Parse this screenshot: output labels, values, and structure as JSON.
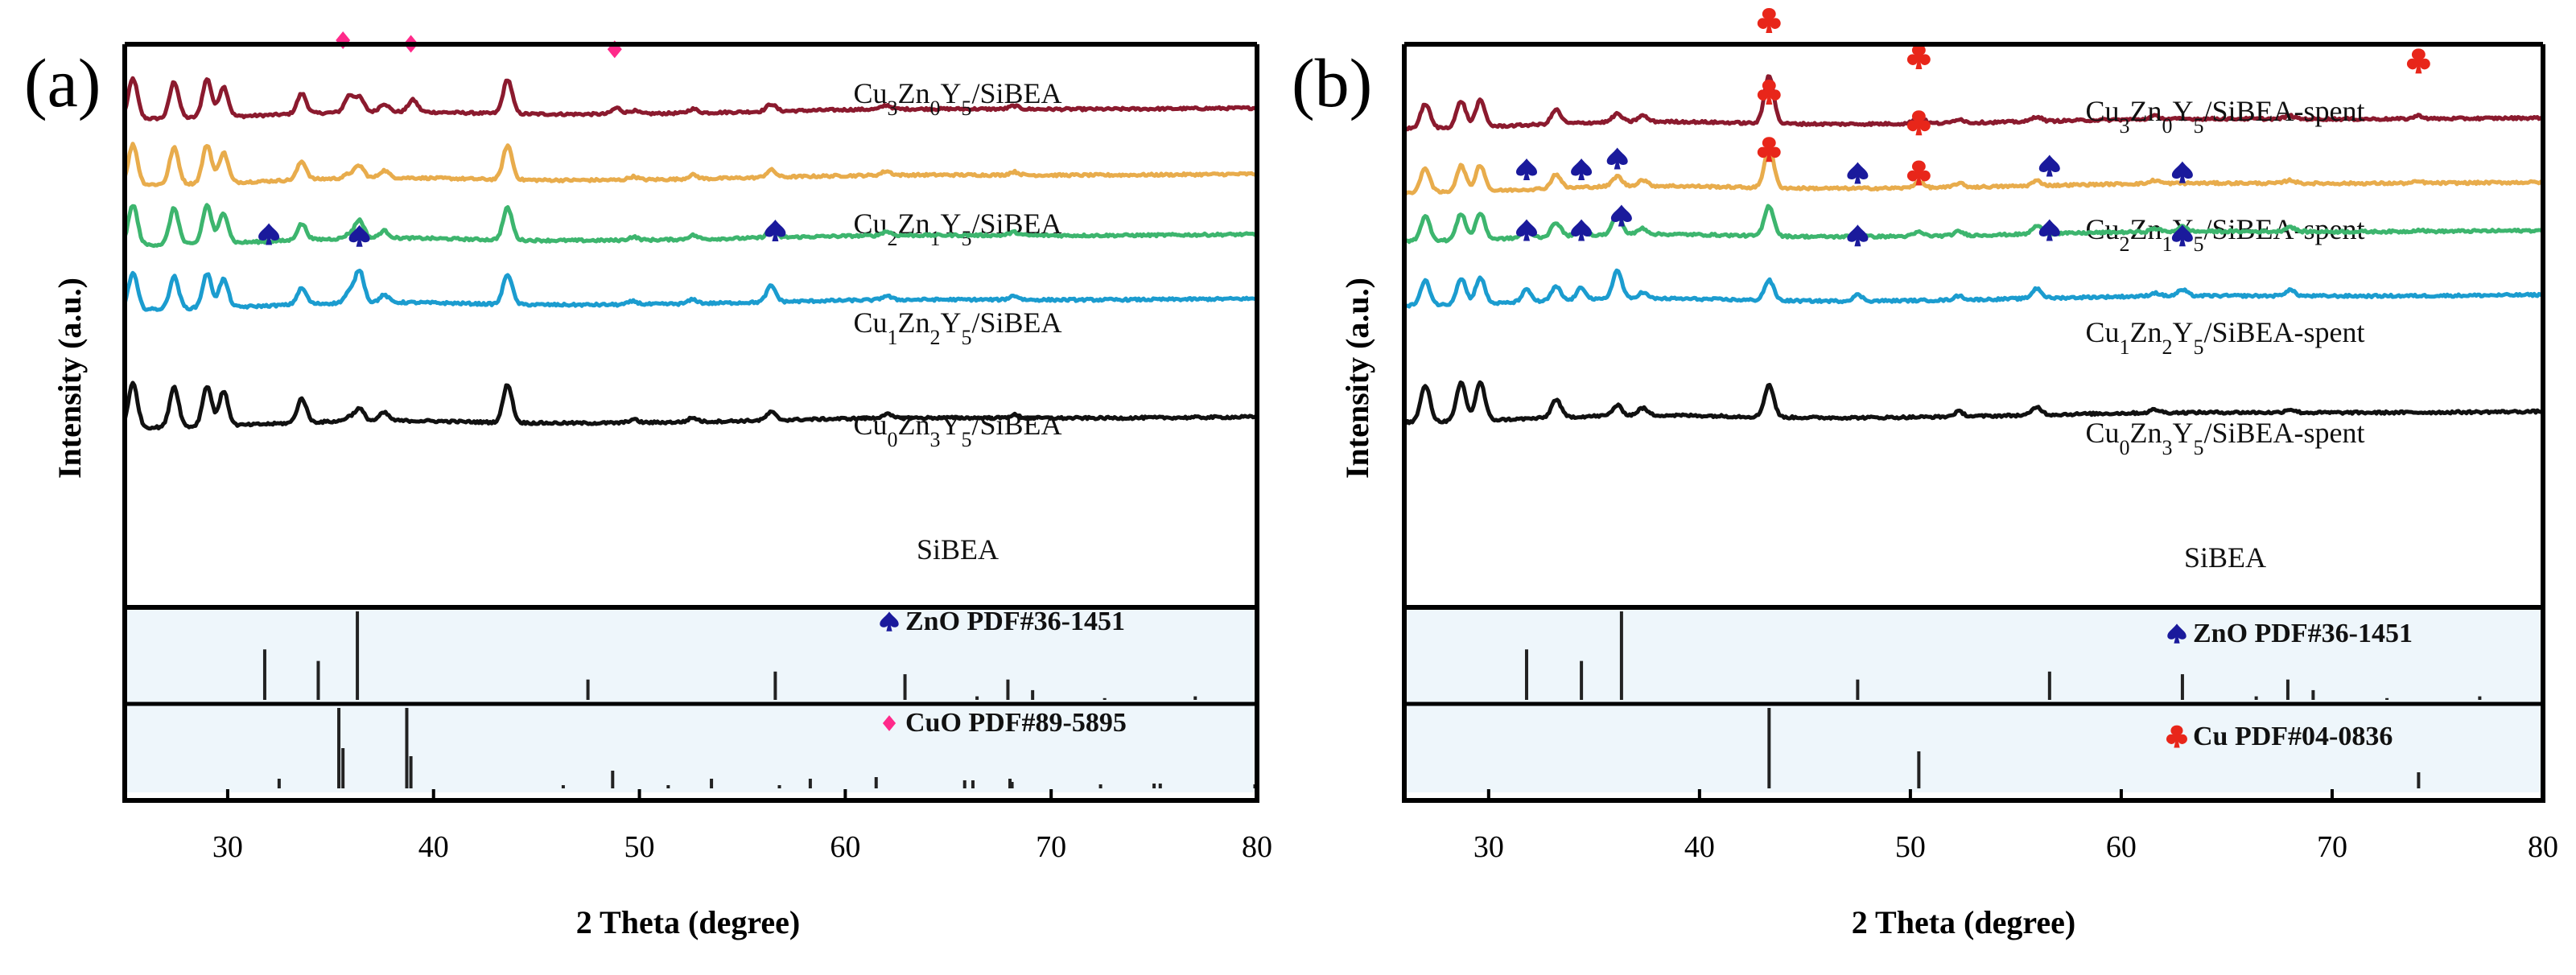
{
  "colors": {
    "curve_background": "#ffffff",
    "ref_background": "#eef6fb",
    "marker_ZnO": "#1a1a9c",
    "marker_CuO": "#ff2a8a",
    "marker_Cu": "#e8261a"
  },
  "chart_data": [
    {
      "type": "line",
      "panel": "(a)",
      "xlabel": "2 Theta (degree)",
      "ylabel": "Intensity (a.u.)",
      "xlim": [
        25,
        80
      ],
      "x_ticks": [
        30,
        40,
        50,
        60,
        70,
        80
      ],
      "y_ticks_shown": false,
      "peak_positions": [
        25.4,
        27.4,
        29.0,
        29.8,
        33.6,
        35.9,
        36.4,
        37.6,
        39.0,
        43.6,
        48.9,
        49.7,
        52.6,
        56.4,
        62.0,
        68.2
      ],
      "series": [
        {
          "name": "Cu3Zn0Y5/SiBEA",
          "label_parts": [
            [
              "Cu",
              ""
            ],
            [
              "3",
              "sub"
            ],
            [
              "Zn",
              ""
            ],
            [
              "0",
              "sub"
            ],
            [
              "Y",
              ""
            ],
            [
              "5",
              "sub"
            ],
            [
              "/SiBEA",
              ""
            ]
          ],
          "color": "#8b1a2e",
          "intensities": [
            100,
            90,
            95,
            75,
            50,
            40,
            35,
            20,
            30,
            85,
            15,
            8,
            10,
            18,
            10,
            8
          ],
          "markers": [
            {
              "phase": "CuO",
              "x": 35.6
            },
            {
              "phase": "CuO",
              "x": 38.9
            },
            {
              "phase": "CuO",
              "x": 48.8
            }
          ]
        },
        {
          "name": "Cu2Zn1Y5/SiBEA",
          "label_parts": [
            [
              "Cu",
              ""
            ],
            [
              "2",
              "sub"
            ],
            [
              "Zn",
              ""
            ],
            [
              "1",
              "sub"
            ],
            [
              "Y",
              ""
            ],
            [
              "5",
              "sub"
            ],
            [
              "/SiBEA",
              ""
            ]
          ],
          "color": "#e8ac4c",
          "intensities": [
            100,
            90,
            95,
            75,
            45,
            10,
            30,
            18,
            0,
            85,
            0,
            8,
            10,
            18,
            10,
            8
          ],
          "markers": []
        },
        {
          "name": "Cu1Zn2Y5/SiBEA",
          "label_parts": [
            [
              "Cu",
              ""
            ],
            [
              "1",
              "sub"
            ],
            [
              "Zn",
              ""
            ],
            [
              "2",
              "sub"
            ],
            [
              "Y",
              ""
            ],
            [
              "5",
              "sub"
            ],
            [
              "/SiBEA",
              ""
            ]
          ],
          "color": "#3db56e",
          "intensities": [
            100,
            90,
            95,
            75,
            40,
            10,
            45,
            18,
            0,
            80,
            0,
            8,
            10,
            18,
            10,
            8
          ],
          "markers": []
        },
        {
          "name": "Cu0Zn3Y5/SiBEA",
          "label_parts": [
            [
              "Cu",
              ""
            ],
            [
              "0",
              "sub"
            ],
            [
              "Zn",
              ""
            ],
            [
              "3",
              "sub"
            ],
            [
              "Y",
              ""
            ],
            [
              "5",
              "sub"
            ],
            [
              "/SiBEA",
              ""
            ]
          ],
          "color": "#1b9ccf",
          "intensities": [
            90,
            80,
            85,
            70,
            40,
            25,
            80,
            18,
            0,
            75,
            0,
            8,
            10,
            40,
            10,
            10
          ],
          "markers": [
            {
              "phase": "ZnO",
              "x": 32.0
            },
            {
              "phase": "ZnO",
              "x": 36.4
            },
            {
              "phase": "ZnO",
              "x": 56.6
            }
          ]
        },
        {
          "name": "SiBEA",
          "label_parts": [
            [
              "SiBEA",
              ""
            ]
          ],
          "color": "#111111",
          "intensities": [
            110,
            100,
            100,
            85,
            60,
            10,
            30,
            20,
            0,
            95,
            0,
            8,
            10,
            20,
            10,
            8
          ],
          "markers": []
        }
      ],
      "reference_patterns": [
        {
          "name": "ZnO PDF#36-1451",
          "marker": "ZnO",
          "peaks": [
            {
              "x": 31.8,
              "i": 57
            },
            {
              "x": 34.4,
              "i": 44
            },
            {
              "x": 36.3,
              "i": 100
            },
            {
              "x": 47.5,
              "i": 23
            },
            {
              "x": 56.6,
              "i": 32
            },
            {
              "x": 62.9,
              "i": 29
            },
            {
              "x": 66.4,
              "i": 4
            },
            {
              "x": 67.9,
              "i": 23
            },
            {
              "x": 69.1,
              "i": 11
            },
            {
              "x": 72.6,
              "i": 2
            },
            {
              "x": 77.0,
              "i": 4
            }
          ]
        },
        {
          "name": "CuO PDF#89-5895",
          "marker": "CuO",
          "peaks": [
            {
              "x": 32.5,
              "i": 12
            },
            {
              "x": 35.4,
              "i": 100
            },
            {
              "x": 35.6,
              "i": 50
            },
            {
              "x": 38.7,
              "i": 100
            },
            {
              "x": 38.9,
              "i": 40
            },
            {
              "x": 46.3,
              "i": 4
            },
            {
              "x": 48.7,
              "i": 22
            },
            {
              "x": 51.4,
              "i": 4
            },
            {
              "x": 53.5,
              "i": 12
            },
            {
              "x": 56.8,
              "i": 4
            },
            {
              "x": 58.3,
              "i": 12
            },
            {
              "x": 61.5,
              "i": 14
            },
            {
              "x": 65.8,
              "i": 10
            },
            {
              "x": 66.2,
              "i": 10
            },
            {
              "x": 68.0,
              "i": 12
            },
            {
              "x": 68.1,
              "i": 8
            },
            {
              "x": 72.4,
              "i": 5
            },
            {
              "x": 75.0,
              "i": 6
            },
            {
              "x": 75.3,
              "i": 6
            },
            {
              "x": 79.9,
              "i": 5
            }
          ]
        }
      ]
    },
    {
      "type": "line",
      "panel": "(b)",
      "xlabel": "2 Theta (degree)",
      "ylabel": "Intensity (a.u.)",
      "xlim": [
        26,
        80
      ],
      "x_ticks": [
        30,
        40,
        50,
        60,
        70,
        80
      ],
      "y_ticks_shown": false,
      "peak_positions": [
        27.0,
        28.7,
        29.6,
        31.8,
        33.2,
        34.4,
        36.1,
        37.3,
        43.3,
        47.5,
        50.4,
        52.3,
        56.0,
        61.6,
        62.9,
        68.0,
        74.1
      ],
      "series": [
        {
          "name": "Cu3Zn0Y5/SiBEA-spent",
          "label_parts": [
            [
              "Cu",
              ""
            ],
            [
              "3",
              "sub"
            ],
            [
              "Zn",
              ""
            ],
            [
              "0",
              "sub"
            ],
            [
              "Y",
              ""
            ],
            [
              "5",
              "sub"
            ],
            [
              "/SiBEA-spent",
              ""
            ]
          ],
          "color": "#8b1a2e",
          "intensities": [
            60,
            65,
            65,
            0,
            35,
            0,
            20,
            15,
            120,
            0,
            20,
            10,
            12,
            8,
            0,
            8,
            8
          ],
          "markers": [
            {
              "phase": "Cu",
              "x": 43.3
            },
            {
              "phase": "Cu",
              "x": 50.4
            },
            {
              "phase": "Cu",
              "x": 74.1
            }
          ]
        },
        {
          "name": "Cu2Zn1Y5/SiBEA-spent",
          "label_parts": [
            [
              "Cu",
              ""
            ],
            [
              "2",
              "sub"
            ],
            [
              "Zn",
              ""
            ],
            [
              "1",
              "sub"
            ],
            [
              "Y",
              ""
            ],
            [
              "5",
              "sub"
            ],
            [
              "/SiBEA-spent",
              ""
            ]
          ],
          "color": "#e8ac4c",
          "intensities": [
            60,
            65,
            65,
            0,
            35,
            0,
            25,
            15,
            100,
            0,
            15,
            10,
            12,
            8,
            0,
            8,
            4
          ],
          "markers": [
            {
              "phase": "Cu",
              "x": 43.3
            },
            {
              "phase": "Cu",
              "x": 50.4
            }
          ]
        },
        {
          "name": "Cu1Zn2Y5/SiBEA-spent",
          "label_parts": [
            [
              "Cu",
              ""
            ],
            [
              "1",
              "sub"
            ],
            [
              "Zn",
              ""
            ],
            [
              "2",
              "sub"
            ],
            [
              "Y",
              ""
            ],
            [
              "5",
              "sub"
            ],
            [
              "/SiBEA-spent",
              ""
            ]
          ],
          "color": "#3db56e",
          "intensities": [
            60,
            65,
            65,
            20,
            35,
            20,
            50,
            15,
            75,
            10,
            10,
            10,
            20,
            8,
            12,
            12,
            4
          ],
          "markers": [
            {
              "phase": "ZnO",
              "x": 31.8
            },
            {
              "phase": "ZnO",
              "x": 34.4
            },
            {
              "phase": "ZnO",
              "x": 36.1
            },
            {
              "phase": "Cu",
              "x": 43.3
            },
            {
              "phase": "ZnO",
              "x": 47.5
            },
            {
              "phase": "Cu",
              "x": 50.4
            },
            {
              "phase": "ZnO",
              "x": 56.6
            },
            {
              "phase": "ZnO",
              "x": 62.9
            }
          ]
        },
        {
          "name": "Cu0Zn3Y5/SiBEA-spent",
          "label_parts": [
            [
              "Cu",
              ""
            ],
            [
              "0",
              "sub"
            ],
            [
              "Zn",
              ""
            ],
            [
              "3",
              "sub"
            ],
            [
              "Y",
              ""
            ],
            [
              "5",
              "sub"
            ],
            [
              "/SiBEA-spent",
              ""
            ]
          ],
          "color": "#1b9ccf",
          "intensities": [
            60,
            65,
            65,
            30,
            35,
            30,
            70,
            15,
            50,
            15,
            0,
            10,
            25,
            8,
            15,
            15,
            0
          ],
          "markers": [
            {
              "phase": "ZnO",
              "x": 31.8
            },
            {
              "phase": "ZnO",
              "x": 34.4
            },
            {
              "phase": "ZnO",
              "x": 36.3
            },
            {
              "phase": "ZnO",
              "x": 47.5
            },
            {
              "phase": "ZnO",
              "x": 56.6
            },
            {
              "phase": "ZnO",
              "x": 62.9
            }
          ]
        },
        {
          "name": "SiBEA",
          "label_parts": [
            [
              "SiBEA",
              ""
            ]
          ],
          "color": "#111111",
          "intensities": [
            90,
            95,
            95,
            0,
            45,
            0,
            25,
            18,
            80,
            0,
            0,
            12,
            20,
            8,
            0,
            8,
            0
          ],
          "markers": []
        }
      ],
      "reference_patterns": [
        {
          "name": "ZnO PDF#36-1451",
          "marker": "ZnO",
          "peaks": [
            {
              "x": 31.8,
              "i": 57
            },
            {
              "x": 34.4,
              "i": 44
            },
            {
              "x": 36.3,
              "i": 100
            },
            {
              "x": 47.5,
              "i": 23
            },
            {
              "x": 56.6,
              "i": 32
            },
            {
              "x": 62.9,
              "i": 29
            },
            {
              "x": 66.4,
              "i": 4
            },
            {
              "x": 67.9,
              "i": 23
            },
            {
              "x": 69.1,
              "i": 11
            },
            {
              "x": 72.6,
              "i": 2
            },
            {
              "x": 77.0,
              "i": 4
            }
          ]
        },
        {
          "name": "Cu PDF#04-0836",
          "marker": "Cu",
          "peaks": [
            {
              "x": 43.3,
              "i": 100
            },
            {
              "x": 50.4,
              "i": 46
            },
            {
              "x": 74.1,
              "i": 20
            }
          ]
        }
      ]
    }
  ]
}
